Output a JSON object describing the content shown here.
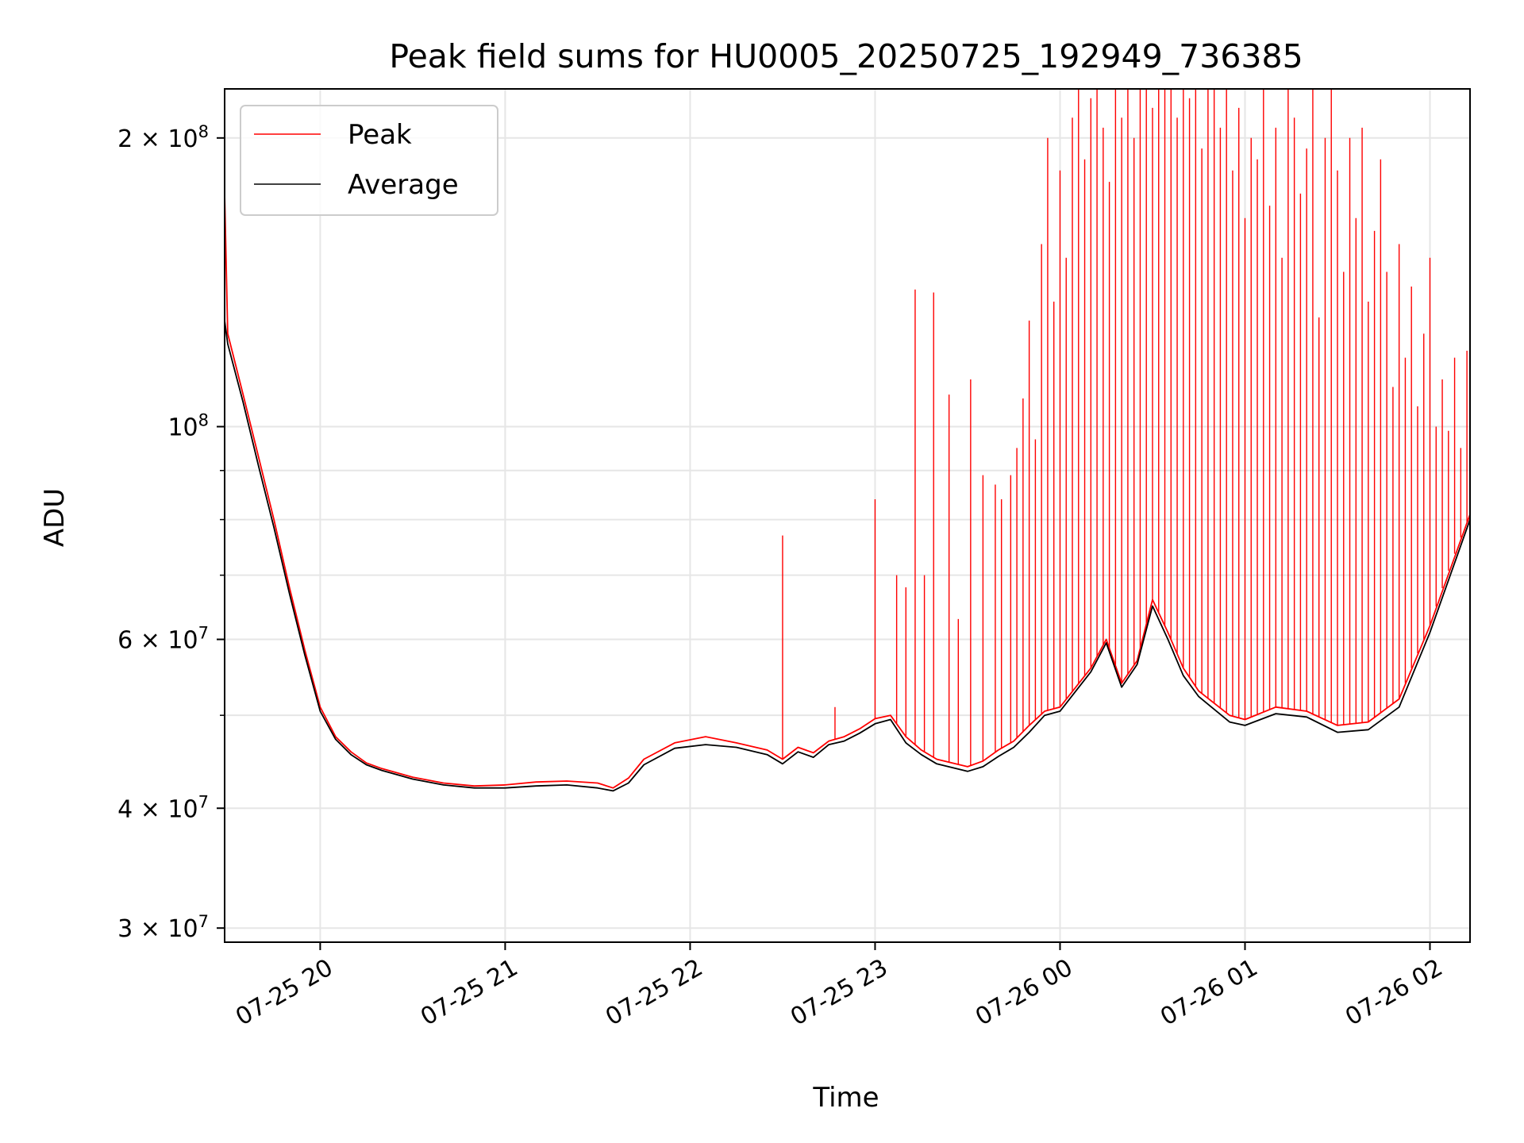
{
  "chart_data": {
    "type": "line",
    "title": "Peak field sums for HU0005_20250725_192949_736385",
    "xlabel": "Time",
    "ylabel": "ADU",
    "yscale": "log",
    "ylim": [
      29000000,
      225000000
    ],
    "xlim": [
      "2025-07-25 19:29",
      "2025-07-26 02:13"
    ],
    "grid": true,
    "legend_position": "top-left",
    "x_ticks": [
      {
        "t": "2025-07-25 20:00",
        "label": "07-25 20"
      },
      {
        "t": "2025-07-25 21:00",
        "label": "07-25 21"
      },
      {
        "t": "2025-07-25 22:00",
        "label": "07-25 22"
      },
      {
        "t": "2025-07-25 23:00",
        "label": "07-25 23"
      },
      {
        "t": "2025-07-26 00:00",
        "label": "07-26 00"
      },
      {
        "t": "2025-07-26 01:00",
        "label": "07-26 01"
      },
      {
        "t": "2025-07-26 02:00",
        "label": "07-26 02"
      }
    ],
    "y_ticks": [
      {
        "v": 30000000,
        "base": "3 × 10",
        "exp": "7"
      },
      {
        "v": 40000000,
        "base": "4 × 10",
        "exp": "7"
      },
      {
        "v": 60000000,
        "base": "6 × 10",
        "exp": "7"
      },
      {
        "v": 100000000,
        "base": "10",
        "exp": "8"
      },
      {
        "v": 200000000,
        "base": "2 × 10",
        "exp": "8"
      }
    ],
    "y_minor_ticks": [
      50000000,
      70000000,
      80000000,
      90000000
    ],
    "series": [
      {
        "name": "Peak",
        "color": "#ff0000",
        "points": [
          [
            "2025-07-25 19:29",
            175000000
          ],
          [
            "2025-07-25 19:30",
            125000000
          ],
          [
            "2025-07-25 19:35",
            108000000
          ],
          [
            "2025-07-25 19:40",
            93000000
          ],
          [
            "2025-07-25 19:45",
            80000000
          ],
          [
            "2025-07-25 19:50",
            68000000
          ],
          [
            "2025-07-25 19:55",
            58500000
          ],
          [
            "2025-07-25 20:00",
            51000000
          ],
          [
            "2025-07-25 20:05",
            47500000
          ],
          [
            "2025-07-25 20:10",
            45800000
          ],
          [
            "2025-07-25 20:15",
            44600000
          ],
          [
            "2025-07-25 20:20",
            44000000
          ],
          [
            "2025-07-25 20:30",
            43100000
          ],
          [
            "2025-07-25 20:40",
            42500000
          ],
          [
            "2025-07-25 20:50",
            42200000
          ],
          [
            "2025-07-25 21:00",
            42300000
          ],
          [
            "2025-07-25 21:10",
            42600000
          ],
          [
            "2025-07-25 21:20",
            42700000
          ],
          [
            "2025-07-25 21:30",
            42500000
          ],
          [
            "2025-07-25 21:35",
            42000000
          ],
          [
            "2025-07-25 21:40",
            43000000
          ],
          [
            "2025-07-25 21:45",
            45000000
          ],
          [
            "2025-07-25 21:55",
            46800000
          ],
          [
            "2025-07-25 22:05",
            47500000
          ],
          [
            "2025-07-25 22:15",
            46800000
          ],
          [
            "2025-07-25 22:25",
            46000000
          ],
          [
            "2025-07-25 22:30",
            45000000
          ],
          [
            "2025-07-25 22:35",
            46300000
          ],
          [
            "2025-07-25 22:40",
            45700000
          ],
          [
            "2025-07-25 22:45",
            47000000
          ],
          [
            "2025-07-25 22:50",
            47500000
          ],
          [
            "2025-07-25 22:55",
            48400000
          ],
          [
            "2025-07-25 23:00",
            49600000
          ],
          [
            "2025-07-25 23:05",
            50000000
          ],
          [
            "2025-07-25 23:10",
            47500000
          ],
          [
            "2025-07-25 23:15",
            46000000
          ],
          [
            "2025-07-25 23:20",
            45000000
          ],
          [
            "2025-07-25 23:30",
            44200000
          ],
          [
            "2025-07-25 23:35",
            44800000
          ],
          [
            "2025-07-25 23:40",
            46000000
          ],
          [
            "2025-07-25 23:45",
            47000000
          ],
          [
            "2025-07-25 23:50",
            48800000
          ],
          [
            "2025-07-25 23:55",
            50500000
          ],
          [
            "2025-07-26 00:00",
            51000000
          ],
          [
            "2025-07-26 00:10",
            56000000
          ],
          [
            "2025-07-26 00:15",
            60000000
          ],
          [
            "2025-07-26 00:20",
            54000000
          ],
          [
            "2025-07-26 00:25",
            57000000
          ],
          [
            "2025-07-26 00:30",
            66000000
          ],
          [
            "2025-07-26 00:35",
            61000000
          ],
          [
            "2025-07-26 00:40",
            56000000
          ],
          [
            "2025-07-26 00:45",
            53000000
          ],
          [
            "2025-07-26 00:55",
            50000000
          ],
          [
            "2025-07-26 01:00",
            49500000
          ],
          [
            "2025-07-26 01:10",
            51000000
          ],
          [
            "2025-07-26 01:20",
            50500000
          ],
          [
            "2025-07-26 01:30",
            48800000
          ],
          [
            "2025-07-26 01:40",
            49200000
          ],
          [
            "2025-07-26 01:50",
            52000000
          ],
          [
            "2025-07-26 02:00",
            62000000
          ],
          [
            "2025-07-26 02:13",
            81000000
          ]
        ],
        "spikes": [
          [
            "2025-07-25 22:30",
            77000000
          ],
          [
            "2025-07-25 22:47",
            51000000
          ],
          [
            "2025-07-25 23:00",
            84000000
          ],
          [
            "2025-07-25 23:07",
            70000000
          ],
          [
            "2025-07-25 23:10",
            68000000
          ],
          [
            "2025-07-25 23:13",
            139000000
          ],
          [
            "2025-07-25 23:16",
            70000000
          ],
          [
            "2025-07-25 23:19",
            138000000
          ],
          [
            "2025-07-25 23:24",
            108000000
          ],
          [
            "2025-07-25 23:27",
            63000000
          ],
          [
            "2025-07-25 23:31",
            112000000
          ],
          [
            "2025-07-25 23:35",
            89000000
          ],
          [
            "2025-07-25 23:39",
            87000000
          ],
          [
            "2025-07-25 23:41",
            84000000
          ],
          [
            "2025-07-25 23:44",
            89000000
          ],
          [
            "2025-07-25 23:46",
            95000000
          ],
          [
            "2025-07-25 23:48",
            107000000
          ],
          [
            "2025-07-25 23:50",
            129000000
          ],
          [
            "2025-07-25 23:52",
            97000000
          ],
          [
            "2025-07-25 23:54",
            155000000
          ],
          [
            "2025-07-25 23:56",
            200000000
          ],
          [
            "2025-07-25 23:58",
            135000000
          ],
          [
            "2025-07-26 00:00",
            185000000
          ],
          [
            "2025-07-26 00:02",
            150000000
          ],
          [
            "2025-07-26 00:04",
            210000000
          ],
          [
            "2025-07-26 00:06",
            225000000
          ],
          [
            "2025-07-26 00:08",
            190000000
          ],
          [
            "2025-07-26 00:10",
            220000000
          ],
          [
            "2025-07-26 00:12",
            225000000
          ],
          [
            "2025-07-26 00:14",
            205000000
          ],
          [
            "2025-07-26 00:16",
            180000000
          ],
          [
            "2025-07-26 00:18",
            225000000
          ],
          [
            "2025-07-26 00:20",
            210000000
          ],
          [
            "2025-07-26 00:22",
            225000000
          ],
          [
            "2025-07-26 00:24",
            200000000
          ],
          [
            "2025-07-26 00:26",
            225000000
          ],
          [
            "2025-07-26 00:28",
            225000000
          ],
          [
            "2025-07-26 00:30",
            215000000
          ],
          [
            "2025-07-26 00:32",
            225000000
          ],
          [
            "2025-07-26 00:34",
            225000000
          ],
          [
            "2025-07-26 00:36",
            225000000
          ],
          [
            "2025-07-26 00:38",
            210000000
          ],
          [
            "2025-07-26 00:40",
            225000000
          ],
          [
            "2025-07-26 00:42",
            220000000
          ],
          [
            "2025-07-26 00:44",
            225000000
          ],
          [
            "2025-07-26 00:46",
            195000000
          ],
          [
            "2025-07-26 00:48",
            225000000
          ],
          [
            "2025-07-26 00:50",
            225000000
          ],
          [
            "2025-07-26 00:52",
            205000000
          ],
          [
            "2025-07-26 00:54",
            225000000
          ],
          [
            "2025-07-26 00:56",
            185000000
          ],
          [
            "2025-07-26 00:58",
            215000000
          ],
          [
            "2025-07-26 01:00",
            165000000
          ],
          [
            "2025-07-26 01:02",
            200000000
          ],
          [
            "2025-07-26 01:04",
            190000000
          ],
          [
            "2025-07-26 01:06",
            225000000
          ],
          [
            "2025-07-26 01:08",
            170000000
          ],
          [
            "2025-07-26 01:10",
            205000000
          ],
          [
            "2025-07-26 01:12",
            150000000
          ],
          [
            "2025-07-26 01:14",
            225000000
          ],
          [
            "2025-07-26 01:16",
            210000000
          ],
          [
            "2025-07-26 01:18",
            175000000
          ],
          [
            "2025-07-26 01:20",
            195000000
          ],
          [
            "2025-07-26 01:22",
            225000000
          ],
          [
            "2025-07-26 01:24",
            130000000
          ],
          [
            "2025-07-26 01:26",
            200000000
          ],
          [
            "2025-07-26 01:28",
            225000000
          ],
          [
            "2025-07-26 01:30",
            185000000
          ],
          [
            "2025-07-26 01:32",
            145000000
          ],
          [
            "2025-07-26 01:34",
            200000000
          ],
          [
            "2025-07-26 01:36",
            165000000
          ],
          [
            "2025-07-26 01:38",
            205000000
          ],
          [
            "2025-07-26 01:40",
            135000000
          ],
          [
            "2025-07-26 01:42",
            160000000
          ],
          [
            "2025-07-26 01:44",
            190000000
          ],
          [
            "2025-07-26 01:46",
            145000000
          ],
          [
            "2025-07-26 01:48",
            110000000
          ],
          [
            "2025-07-26 01:50",
            155000000
          ],
          [
            "2025-07-26 01:52",
            118000000
          ],
          [
            "2025-07-26 01:54",
            140000000
          ],
          [
            "2025-07-26 01:56",
            105000000
          ],
          [
            "2025-07-26 01:58",
            125000000
          ],
          [
            "2025-07-26 02:00",
            150000000
          ],
          [
            "2025-07-26 02:02",
            100000000
          ],
          [
            "2025-07-26 02:04",
            112000000
          ],
          [
            "2025-07-26 02:06",
            99000000
          ],
          [
            "2025-07-26 02:08",
            118000000
          ],
          [
            "2025-07-26 02:10",
            95000000
          ],
          [
            "2025-07-26 02:12",
            120000000
          ]
        ]
      },
      {
        "name": "Average",
        "color": "#000000",
        "points": [
          [
            "2025-07-25 19:29",
            129000000
          ],
          [
            "2025-07-25 19:30",
            122000000
          ],
          [
            "2025-07-25 19:35",
            106000000
          ],
          [
            "2025-07-25 19:40",
            91000000
          ],
          [
            "2025-07-25 19:45",
            78500000
          ],
          [
            "2025-07-25 19:50",
            67000000
          ],
          [
            "2025-07-25 19:55",
            57800000
          ],
          [
            "2025-07-25 20:00",
            50500000
          ],
          [
            "2025-07-25 20:05",
            47200000
          ],
          [
            "2025-07-25 20:10",
            45500000
          ],
          [
            "2025-07-25 20:15",
            44400000
          ],
          [
            "2025-07-25 20:20",
            43800000
          ],
          [
            "2025-07-25 20:30",
            42900000
          ],
          [
            "2025-07-25 20:40",
            42300000
          ],
          [
            "2025-07-25 20:50",
            42000000
          ],
          [
            "2025-07-25 21:00",
            42000000
          ],
          [
            "2025-07-25 21:10",
            42200000
          ],
          [
            "2025-07-25 21:20",
            42300000
          ],
          [
            "2025-07-25 21:30",
            42000000
          ],
          [
            "2025-07-25 21:35",
            41700000
          ],
          [
            "2025-07-25 21:40",
            42500000
          ],
          [
            "2025-07-25 21:45",
            44400000
          ],
          [
            "2025-07-25 21:55",
            46200000
          ],
          [
            "2025-07-25 22:05",
            46600000
          ],
          [
            "2025-07-25 22:15",
            46300000
          ],
          [
            "2025-07-25 22:25",
            45500000
          ],
          [
            "2025-07-25 22:30",
            44500000
          ],
          [
            "2025-07-25 22:35",
            45800000
          ],
          [
            "2025-07-25 22:40",
            45200000
          ],
          [
            "2025-07-25 22:45",
            46600000
          ],
          [
            "2025-07-25 22:50",
            47000000
          ],
          [
            "2025-07-25 22:55",
            47900000
          ],
          [
            "2025-07-25 23:00",
            49000000
          ],
          [
            "2025-07-25 23:05",
            49500000
          ],
          [
            "2025-07-25 23:10",
            46800000
          ],
          [
            "2025-07-25 23:15",
            45500000
          ],
          [
            "2025-07-25 23:20",
            44500000
          ],
          [
            "2025-07-25 23:30",
            43700000
          ],
          [
            "2025-07-25 23:35",
            44200000
          ],
          [
            "2025-07-25 23:40",
            45300000
          ],
          [
            "2025-07-25 23:45",
            46300000
          ],
          [
            "2025-07-25 23:50",
            48000000
          ],
          [
            "2025-07-25 23:55",
            50000000
          ],
          [
            "2025-07-26 00:00",
            50500000
          ],
          [
            "2025-07-26 00:10",
            55500000
          ],
          [
            "2025-07-26 00:15",
            59500000
          ],
          [
            "2025-07-26 00:20",
            53500000
          ],
          [
            "2025-07-26 00:25",
            56500000
          ],
          [
            "2025-07-26 00:30",
            65000000
          ],
          [
            "2025-07-26 00:35",
            60000000
          ],
          [
            "2025-07-26 00:40",
            55000000
          ],
          [
            "2025-07-26 00:45",
            52300000
          ],
          [
            "2025-07-26 00:55",
            49200000
          ],
          [
            "2025-07-26 01:00",
            48800000
          ],
          [
            "2025-07-26 01:10",
            50200000
          ],
          [
            "2025-07-26 01:20",
            49800000
          ],
          [
            "2025-07-26 01:30",
            48000000
          ],
          [
            "2025-07-26 01:40",
            48300000
          ],
          [
            "2025-07-26 01:50",
            51000000
          ],
          [
            "2025-07-26 02:00",
            61000000
          ],
          [
            "2025-07-26 02:13",
            80000000
          ]
        ]
      }
    ]
  }
}
